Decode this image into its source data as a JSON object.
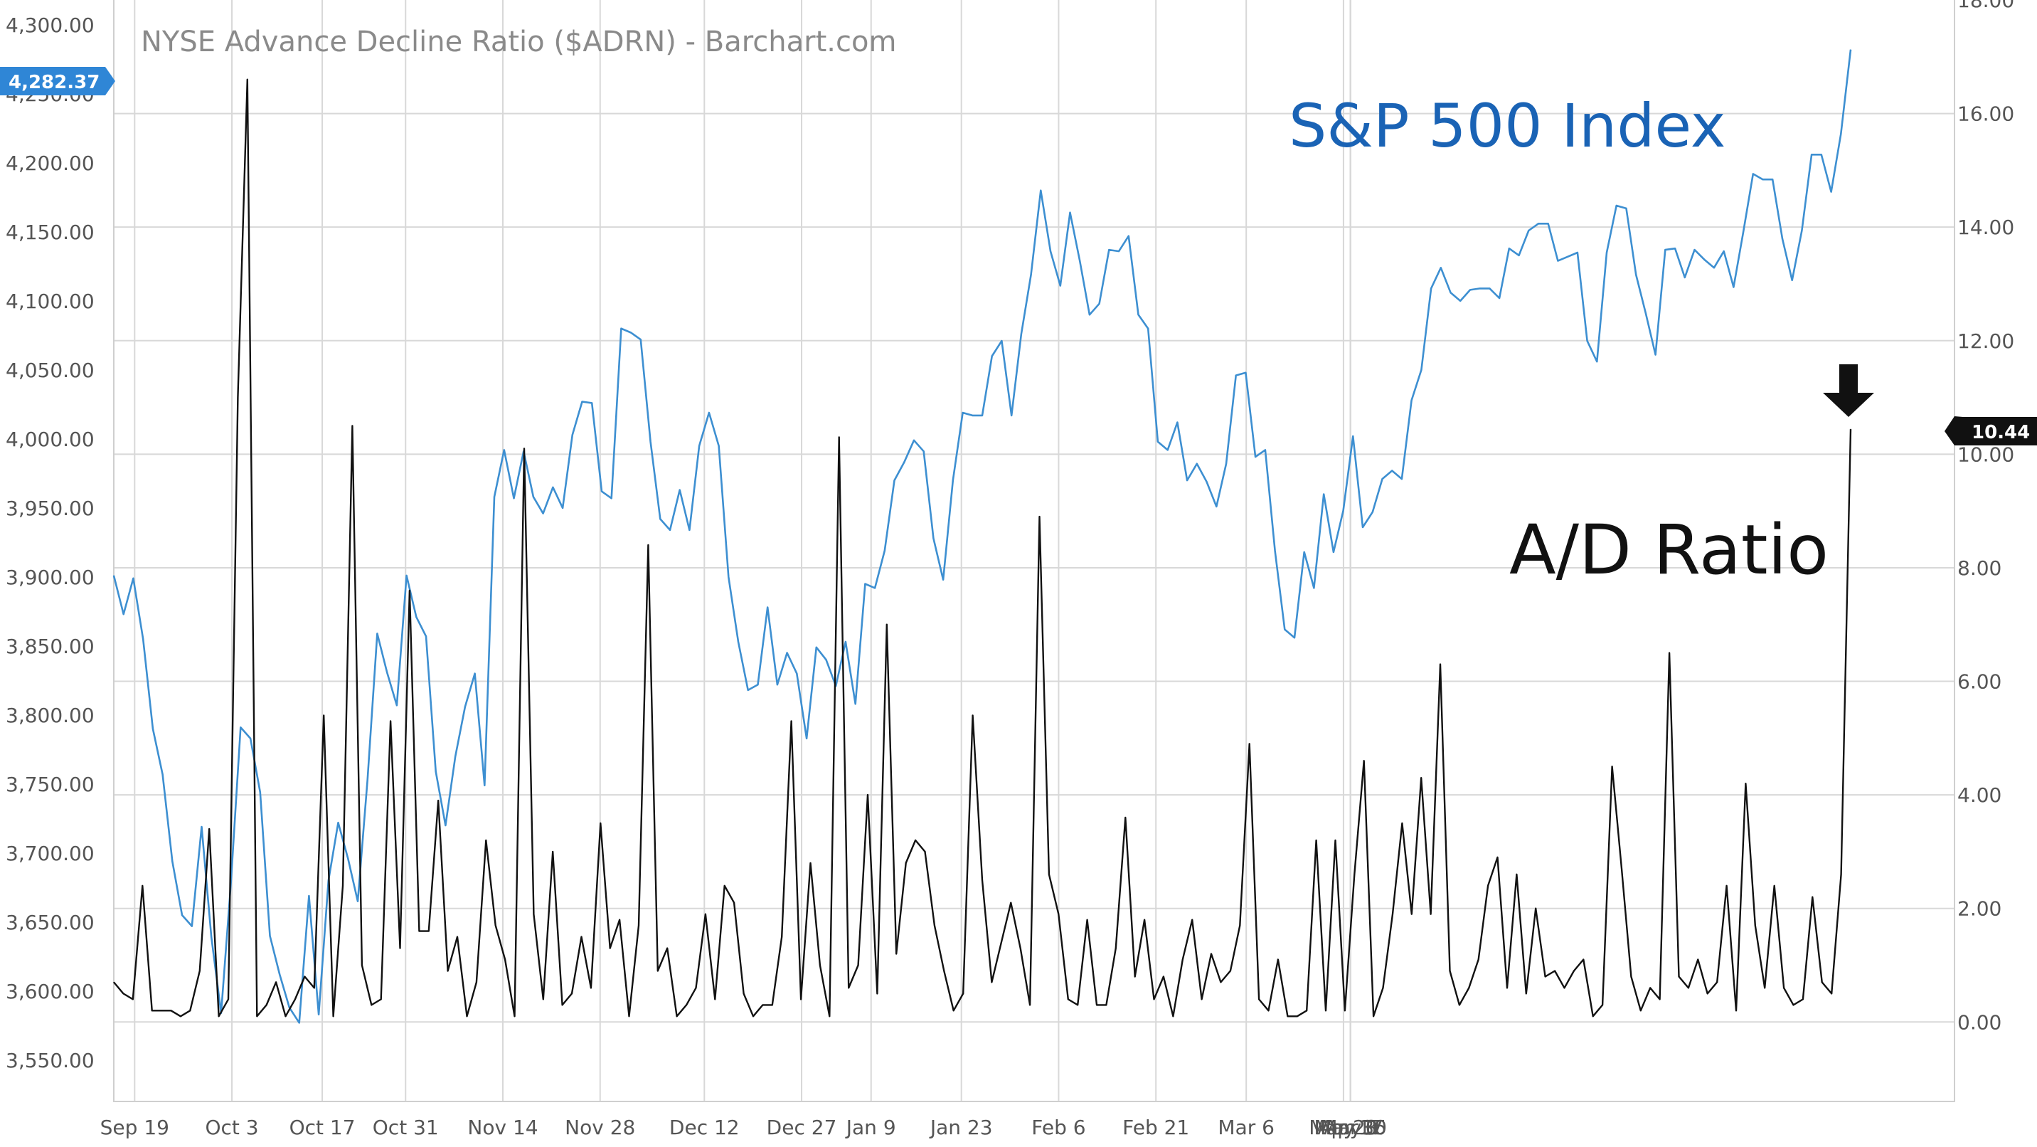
{
  "chart_data": {
    "type": "line",
    "title": "NYSE Advance Decline Ratio ($ADRN) - Barchart.com",
    "annotations": {
      "sp500": "S&P 500 Index",
      "ad_ratio": "A/D Ratio"
    },
    "x_tick_labels": [
      "Sep 19",
      "Oct 3",
      "Oct 17",
      "Oct 31",
      "Nov 14",
      "Nov 28",
      "Dec 12",
      "Dec 27",
      "Jan 9",
      "Jan 23",
      "Feb 6",
      "Feb 21",
      "Mar 6",
      "Mar 20",
      "Apr 3",
      "Apr 17",
      "May 1",
      "May 15",
      "May 30"
    ],
    "left_axis": {
      "ticks": [
        "4,300.00",
        "4,250.00",
        "4,200.00",
        "4,150.00",
        "4,100.00",
        "4,050.00",
        "4,000.00",
        "3,950.00",
        "3,900.00",
        "3,850.00",
        "3,800.00",
        "3,750.00",
        "3,700.00",
        "3,650.00",
        "3,600.00",
        "3,550.00"
      ],
      "range": [
        3520,
        4318
      ]
    },
    "right_axis": {
      "ticks": [
        "18.00",
        "16.00",
        "14.00",
        "12.00",
        "10.00",
        "8.00",
        "6.00",
        "4.00",
        "2.00",
        "0.00"
      ],
      "range": [
        -1.4,
        18.0
      ]
    },
    "last_values": {
      "sp500": "4,282.37",
      "ad_ratio": "10.44"
    },
    "colors": {
      "sp500": "#3d8fd1",
      "ad_ratio": "#111111",
      "badge_blue": "#2f86d6",
      "badge_black": "#111111",
      "grid": "#d8d8d8"
    },
    "series": [
      {
        "name": "S&P 500 Index",
        "axis": "left",
        "values": [
          3901,
          3873,
          3899,
          3855,
          3790,
          3757,
          3694,
          3655,
          3647,
          3719,
          3639,
          3584,
          3678,
          3791,
          3783,
          3744,
          3640,
          3612,
          3588,
          3577,
          3669,
          3583,
          3680,
          3722,
          3696,
          3665,
          3753,
          3859,
          3831,
          3807,
          3901,
          3871,
          3857,
          3759,
          3720,
          3770,
          3806,
          3830,
          3749,
          3958,
          3992,
          3957,
          3991,
          3958,
          3946,
          3965,
          3950,
          4003,
          4027,
          4026,
          3962,
          3957,
          4080,
          4077,
          4072,
          3998,
          3942,
          3934,
          3963,
          3934,
          3995,
          4019,
          3995,
          3900,
          3853,
          3818,
          3822,
          3878,
          3822,
          3845,
          3830,
          3783,
          3849,
          3840,
          3821,
          3853,
          3808,
          3895,
          3892,
          3919,
          3970,
          3983,
          3999,
          3991,
          3928,
          3898,
          3970,
          4019,
          4017,
          4017,
          4060,
          4071,
          4017,
          4076,
          4119,
          4180,
          4136,
          4111,
          4164,
          4129,
          4090,
          4098,
          4137,
          4136,
          4147,
          4090,
          4080,
          3998,
          3992,
          4012,
          3970,
          3982,
          3969,
          3951,
          3982,
          4046,
          4048,
          3987,
          3992,
          3919,
          3862,
          3856,
          3918,
          3892,
          3960,
          3918,
          3948,
          4002,
          3936,
          3947,
          3971,
          3977,
          3971,
          4028,
          4050,
          4109,
          4124,
          4106,
          4100,
          4108,
          4109,
          4109,
          4102,
          4138,
          4133,
          4151,
          4156,
          4156,
          4129,
          4132,
          4135,
          4071,
          4056,
          4135,
          4169,
          4167,
          4119,
          4091,
          4061,
          4137,
          4138,
          4117,
          4137,
          4130,
          4124,
          4136,
          4110,
          4150,
          4192,
          4188,
          4188,
          4145,
          4115,
          4151,
          4206,
          4206,
          4179,
          4221,
          4282
        ]
      },
      {
        "name": "A/D Ratio",
        "axis": "right",
        "values": [
          0.7,
          0.5,
          0.4,
          2.4,
          0.2,
          0.2,
          0.2,
          0.1,
          0.2,
          0.9,
          3.4,
          0.1,
          0.4,
          11.0,
          16.6,
          0.1,
          0.3,
          0.7,
          0.1,
          0.4,
          0.8,
          0.6,
          5.4,
          0.1,
          2.4,
          10.5,
          1.0,
          0.3,
          0.4,
          5.3,
          1.3,
          7.6,
          1.6,
          1.6,
          3.9,
          0.9,
          1.5,
          0.1,
          0.7,
          3.2,
          1.7,
          1.1,
          0.1,
          10.1,
          1.9,
          0.4,
          3.0,
          0.3,
          0.5,
          1.5,
          0.6,
          3.5,
          1.3,
          1.8,
          0.1,
          1.7,
          8.4,
          0.9,
          1.3,
          0.1,
          0.3,
          0.6,
          1.9,
          0.4,
          2.4,
          2.1,
          0.5,
          0.1,
          0.3,
          0.3,
          1.5,
          5.3,
          0.4,
          2.8,
          1.0,
          0.1,
          10.3,
          0.6,
          1.0,
          4.0,
          0.5,
          7.0,
          1.2,
          2.8,
          3.2,
          3.0,
          1.7,
          0.9,
          0.2,
          0.5,
          5.4,
          2.5,
          0.7,
          1.4,
          2.1,
          1.3,
          0.3,
          8.9,
          2.6,
          1.9,
          0.4,
          0.3,
          1.8,
          0.3,
          0.3,
          1.3,
          3.6,
          0.8,
          1.8,
          0.4,
          0.8,
          0.1,
          1.1,
          1.8,
          0.4,
          1.2,
          0.7,
          0.9,
          1.7,
          4.9,
          0.4,
          0.2,
          1.1,
          0.1,
          0.1,
          0.2,
          3.2,
          0.2,
          3.2,
          0.2,
          2.6,
          4.6,
          0.1,
          0.6,
          1.9,
          3.5,
          1.9,
          4.3,
          1.9,
          6.3,
          0.9,
          0.3,
          0.6,
          1.1,
          2.4,
          2.9,
          0.6,
          2.6,
          0.5,
          2.0,
          0.8,
          0.9,
          0.6,
          0.9,
          1.1,
          0.1,
          0.3,
          4.5,
          2.7,
          0.8,
          0.2,
          0.6,
          0.4,
          6.5,
          0.8,
          0.6,
          1.1,
          0.5,
          0.7,
          2.4,
          0.2,
          4.2,
          1.7,
          0.6,
          2.4,
          0.6,
          0.3,
          0.4,
          2.2,
          0.7,
          0.5,
          2.6,
          10.44
        ]
      }
    ]
  }
}
